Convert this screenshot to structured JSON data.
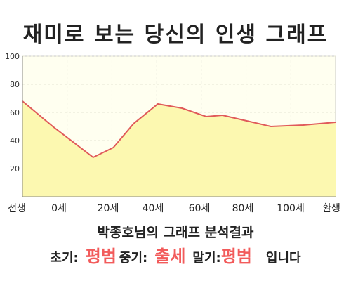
{
  "title": "재미로 보는 당신의 인생 그래프",
  "chart_data": {
    "type": "area",
    "x_labels": [
      "전생",
      "0세",
      "20세",
      "40세",
      "60세",
      "80세",
      "100세",
      "환생"
    ],
    "y_ticks": [
      20,
      40,
      60,
      80,
      100
    ],
    "ylim": [
      0,
      100
    ],
    "xlim": [
      -15,
      140
    ],
    "points": [
      {
        "x": -15,
        "y": 68
      },
      {
        "x": 0,
        "y": 50
      },
      {
        "x": 20,
        "y": 28
      },
      {
        "x": 30,
        "y": 35
      },
      {
        "x": 40,
        "y": 52
      },
      {
        "x": 52,
        "y": 66
      },
      {
        "x": 64,
        "y": 63
      },
      {
        "x": 76,
        "y": 57
      },
      {
        "x": 84,
        "y": 58
      },
      {
        "x": 96,
        "y": 54
      },
      {
        "x": 108,
        "y": 50
      },
      {
        "x": 124,
        "y": 51
      },
      {
        "x": 140,
        "y": 53
      }
    ],
    "line_color": "#e05a5a",
    "fill_color": "#fcf8b0",
    "background_color": "#fffff0",
    "grid": true
  },
  "summary": {
    "title": "박종호님의 그래프 분석결과",
    "early_label": "초기:",
    "early_value": "평범",
    "mid_label": "중기:",
    "mid_value": "출세",
    "late_label": "말기:",
    "late_value": "평범",
    "ending": "입니다",
    "value_color": "#f25b5b"
  }
}
